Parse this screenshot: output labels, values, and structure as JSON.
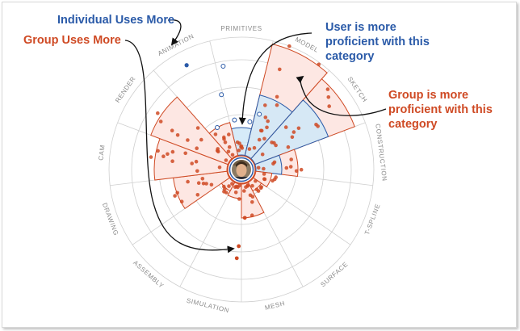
{
  "annotations": {
    "individual_uses_more": "Individual Uses More",
    "group_uses_more": "Group Uses More",
    "user_more_proficient": [
      "User is more",
      "proficient with this",
      "category"
    ],
    "group_more_proficient": [
      "Group is more",
      "proficient with this",
      "category"
    ]
  },
  "categories": [
    "PRIMITIVES",
    "MODEL",
    "SKETCH",
    "CONSTRUCTION",
    "T-SPLINE",
    "SURFACE",
    "MESH",
    "SIMULATION",
    "ASSEMBLY",
    "DRAWING",
    "CAM",
    "RENDER",
    "ANIMATION"
  ],
  "colors": {
    "individual": "#2a5aa8",
    "group": "#cf4a24",
    "group_fill": "#fde7e3",
    "user_fill": "#cfe8f8",
    "grid": "#cfcfcf"
  },
  "center_image": "avatar-photo"
}
